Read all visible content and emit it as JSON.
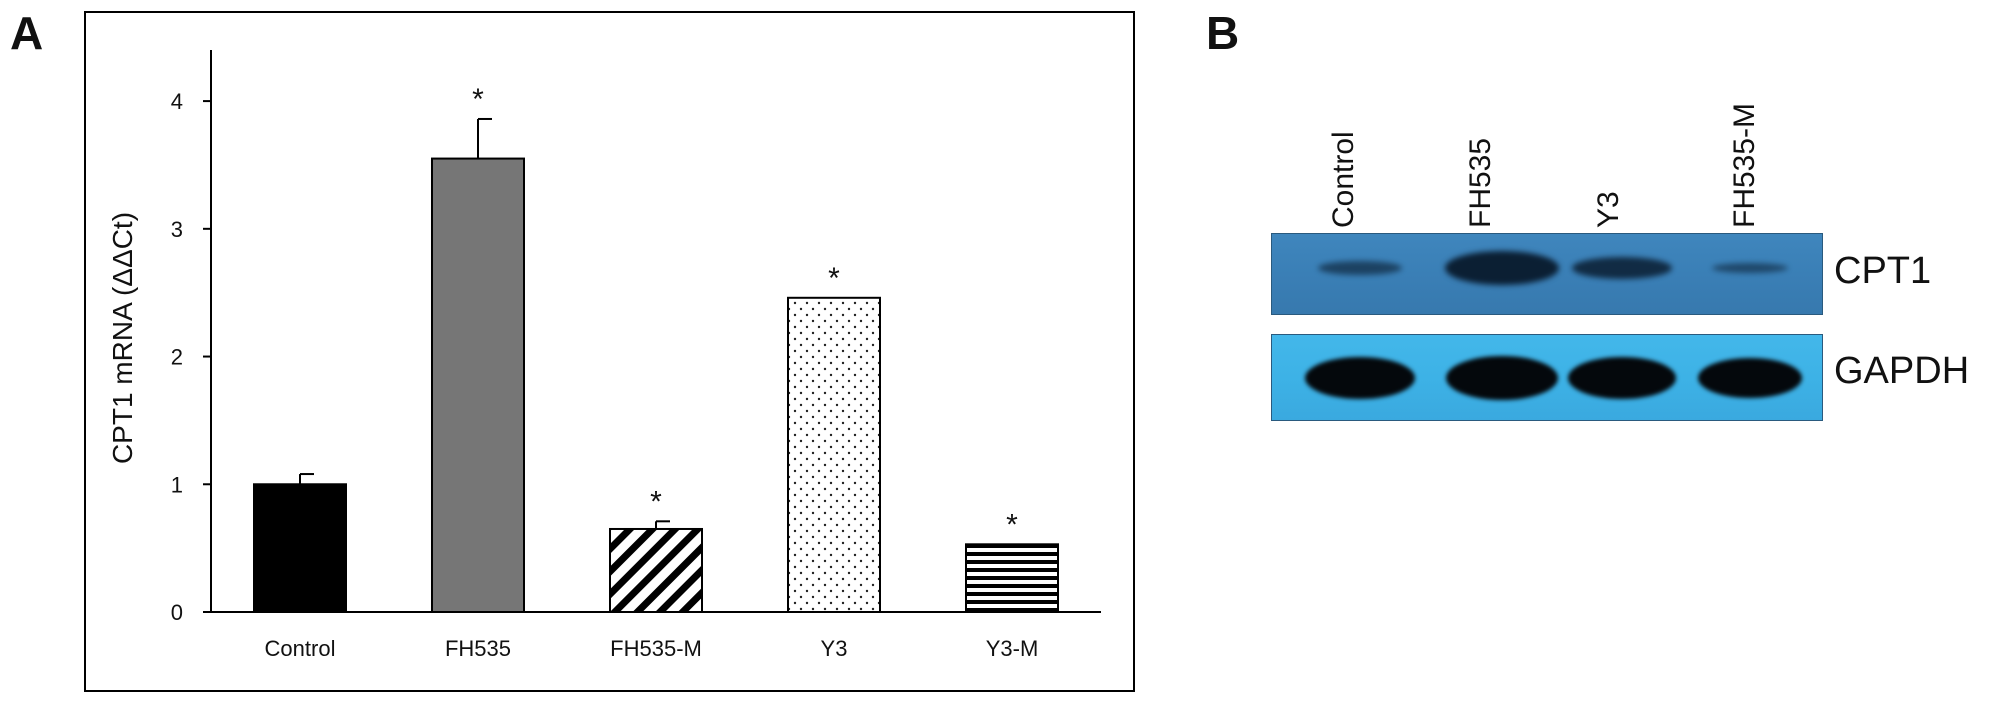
{
  "panel_a": {
    "letter": "A"
  },
  "panel_b": {
    "letter": "B",
    "lanes": [
      "Control",
      "FH535",
      "Y3",
      "FH535-M"
    ],
    "rows": [
      {
        "label": "CPT1",
        "background": "#3a7fb6",
        "band_color": "#0b1f33",
        "band_strength": [
          0.45,
          1.0,
          0.8,
          0.35
        ]
      },
      {
        "label": "GAPDH",
        "background": "#3db2e6",
        "band_color": "#04080c",
        "band_strength": [
          1.0,
          1.0,
          1.0,
          1.0
        ]
      }
    ]
  },
  "chart_data": {
    "type": "bar",
    "categories": [
      "Control",
      "FH535",
      "FH535-M",
      "Y3",
      "Y3-M"
    ],
    "values": [
      1.0,
      3.55,
      0.65,
      2.46,
      0.53
    ],
    "errors": [
      0.08,
      0.31,
      0.06,
      0.0,
      0.0
    ],
    "significance": [
      "",
      "*",
      "*",
      "*",
      "*"
    ],
    "fills": [
      "solid-black",
      "solid-gray",
      "diagonal-hatch",
      "dots",
      "horizontal-lines"
    ],
    "ylabel": "CPT1  mRNA (ΔΔCt)",
    "xlabel": "",
    "ylim": [
      0,
      4.4
    ],
    "yticks": [
      0,
      1,
      2,
      3,
      4
    ],
    "grid": false,
    "colors": {
      "bar_dark": "#000000",
      "bar_gray": "#767676",
      "outline": "#000000"
    }
  }
}
